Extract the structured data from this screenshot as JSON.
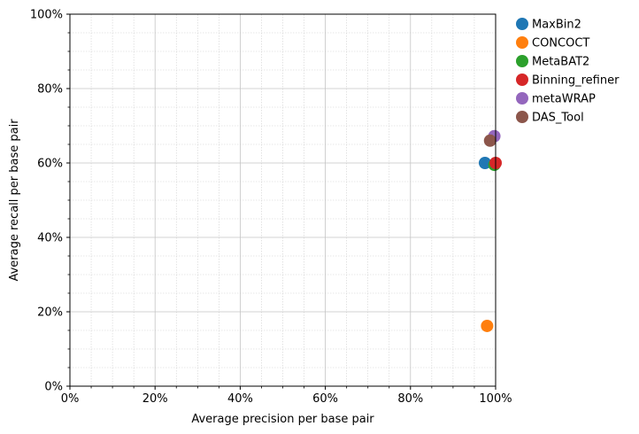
{
  "chart_data": {
    "type": "scatter",
    "title": "",
    "xlabel": "Average precision per base pair",
    "ylabel": "Average recall per base pair",
    "xlim": [
      0,
      1
    ],
    "ylim": [
      0,
      1
    ],
    "x_ticks": [
      "0%",
      "20%",
      "40%",
      "60%",
      "80%",
      "100%"
    ],
    "y_ticks": [
      "0%",
      "20%",
      "40%",
      "60%",
      "80%",
      "100%"
    ],
    "grid": "major and minor",
    "legend_position": "outside top-right",
    "series": [
      {
        "name": "MaxBin2",
        "color": "#1f77b4",
        "x": [
          0.975
        ],
        "y": [
          0.6
        ]
      },
      {
        "name": "CONCOCT",
        "color": "#ff7f0e",
        "x": [
          0.98
        ],
        "y": [
          0.162
        ]
      },
      {
        "name": "MetaBAT2",
        "color": "#2ca02c",
        "x": [
          0.997
        ],
        "y": [
          0.595
        ]
      },
      {
        "name": "Binning_refiner",
        "color": "#d62728",
        "x": [
          1.0
        ],
        "y": [
          0.6
        ]
      },
      {
        "name": "metaWRAP",
        "color": "#9467bd",
        "x": [
          0.997
        ],
        "y": [
          0.672
        ]
      },
      {
        "name": "DAS_Tool",
        "color": "#8c564b",
        "x": [
          0.987
        ],
        "y": [
          0.66
        ]
      }
    ]
  }
}
